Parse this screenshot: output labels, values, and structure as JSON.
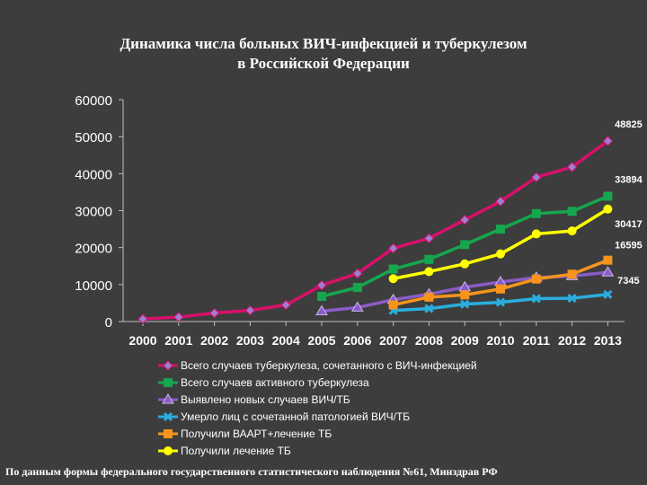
{
  "title_line1": "Динамика числа больных ВИЧ-инфекцией и туберкулезом",
  "title_line2": "в Российской Федерации",
  "footnote": "По данным формы федерального государственного статистического наблюдения №61, Минздрав РФ",
  "chart_data": {
    "type": "line",
    "categories": [
      "2000",
      "2001",
      "2002",
      "2003",
      "2004",
      "2005",
      "2006",
      "2007",
      "2008",
      "2009",
      "2010",
      "2011",
      "2012",
      "2013"
    ],
    "ylim": [
      0,
      60000
    ],
    "yticks": [
      "0",
      "10000",
      "20000",
      "30000",
      "40000",
      "50000",
      "60000"
    ],
    "grid": false,
    "legend_position": "bottom",
    "series": [
      {
        "name": "Всего случаев туберкулеза, сочетанного с ВИЧ-инфекцией",
        "color": "#d8106b",
        "marker": "diamond",
        "marker_fill": "#9b7fd1",
        "end_label": "48825",
        "values": [
          700,
          1200,
          2300,
          3000,
          4500,
          9800,
          13000,
          19800,
          22500,
          27500,
          32500,
          39000,
          41800,
          48825
        ]
      },
      {
        "name": "Всего случаев активного туберкулеза",
        "color": "#16a64e",
        "marker": "square",
        "marker_fill": "#16a64e",
        "end_label": "33894",
        "values": [
          null,
          null,
          null,
          null,
          null,
          6800,
          9200,
          14200,
          16800,
          20800,
          25000,
          29200,
          29800,
          33894
        ]
      },
      {
        "name": "Выявлено новых случаев ВИЧ/ТБ",
        "color": "#8a5cc7",
        "marker": "triangle",
        "marker_fill": "#8a5cc7",
        "end_label": "",
        "values": [
          null,
          null,
          null,
          null,
          null,
          2800,
          3800,
          5900,
          7400,
          9300,
          10700,
          11900,
          12300,
          13300
        ]
      },
      {
        "name": "Умерло лиц с сочетанной патологией ВИЧ/ТБ",
        "color": "#2aaede",
        "marker": "x",
        "marker_fill": "#2aaede",
        "end_label": "7345",
        "values": [
          null,
          null,
          null,
          null,
          null,
          null,
          null,
          3000,
          3500,
          4700,
          5200,
          6200,
          6300,
          7345
        ]
      },
      {
        "name": "Получили ВААРТ+лечение ТБ",
        "color": "#f7941d",
        "marker": "square",
        "marker_fill": "#f7941d",
        "end_label": "16595",
        "values": [
          null,
          null,
          null,
          null,
          null,
          null,
          null,
          4500,
          6600,
          7200,
          8800,
          11500,
          12800,
          16595
        ]
      },
      {
        "name": "Получили лечение ТБ",
        "color": "#ffff00",
        "marker": "circle",
        "marker_fill": "#ffff00",
        "end_label": "30417",
        "values": [
          null,
          null,
          null,
          null,
          null,
          null,
          null,
          11600,
          13500,
          15600,
          18300,
          23700,
          24500,
          30417
        ]
      }
    ]
  }
}
